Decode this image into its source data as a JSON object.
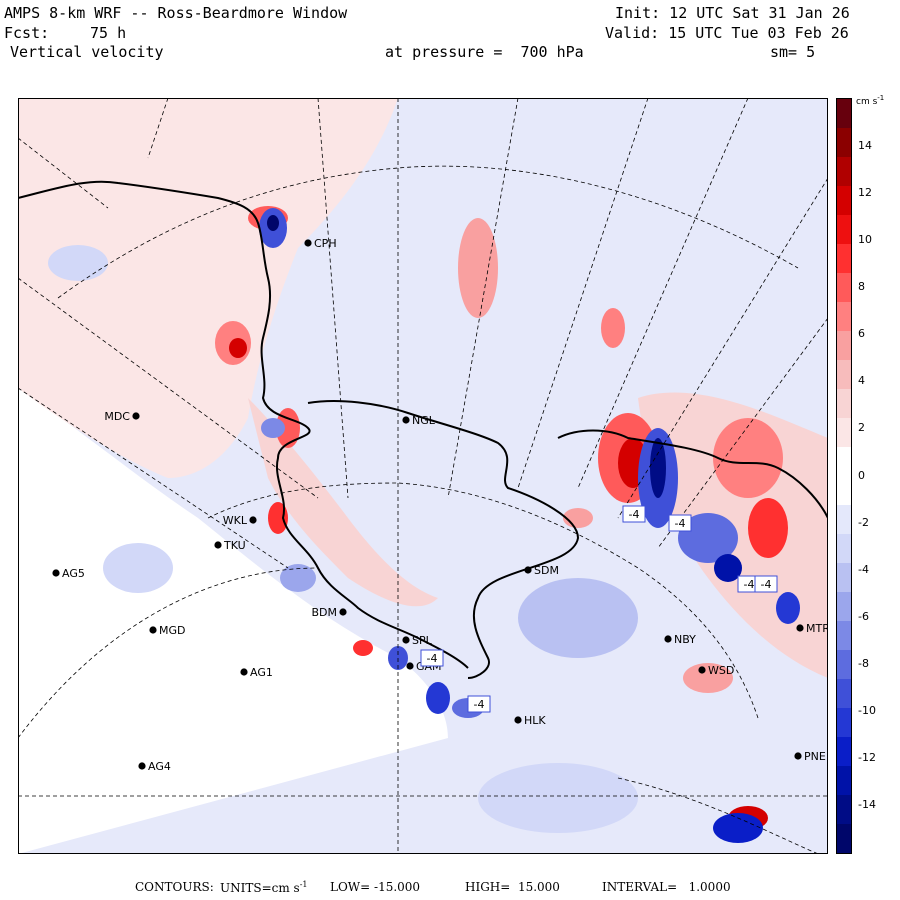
{
  "header": {
    "title": "AMPS 8-km WRF -- Ross-Beardmore Window",
    "init": "Init: 12 UTC Sat 31 Jan 26",
    "forecast_label": "Fcst:",
    "forecast_hours": "75 h",
    "valid": "Valid: 15 UTC Tue 03 Feb 26",
    "field": "Vertical velocity",
    "pressure_level": "at pressure =  700 hPa",
    "smoothing": "sm= 5"
  },
  "colorbar": {
    "units_label": "cm s",
    "units_exp": "-1",
    "tick_labels": [
      "14",
      "12",
      "10",
      "8",
      "6",
      "4",
      "2",
      "0",
      "-2",
      "-4",
      "-6",
      "-8",
      "-10",
      "-12",
      "-14"
    ],
    "colors": [
      "#67000d",
      "#8b0000",
      "#b00000",
      "#d40000",
      "#ee1010",
      "#ff3030",
      "#ff5a5a",
      "#ff8080",
      "#f9a0a0",
      "#f7bcbc",
      "#f8d4d4",
      "#fbe6e6",
      "#ffffff",
      "#ffffff",
      "#e4e8fb",
      "#d2d8f8",
      "#b9c1f2",
      "#9ba6ec",
      "#7c89e6",
      "#5d6cdf",
      "#3f50d8",
      "#2438d4",
      "#0a1ec8",
      "#0012a8",
      "#000c86",
      "#00066a"
    ]
  },
  "stations": [
    {
      "name": "MDC"
    },
    {
      "name": "NGL"
    },
    {
      "name": "TKU"
    },
    {
      "name": "AG5"
    },
    {
      "name": "SDM"
    },
    {
      "name": "MGD"
    },
    {
      "name": "BDM"
    },
    {
      "name": "SPL"
    },
    {
      "name": "GAM"
    },
    {
      "name": "AG1"
    },
    {
      "name": "NBY"
    },
    {
      "name": "MTR"
    },
    {
      "name": "WSD"
    },
    {
      "name": "HLK"
    },
    {
      "name": "AG4"
    },
    {
      "name": "PNE"
    },
    {
      "name": "WKL"
    },
    {
      "name": "CPH"
    }
  ],
  "box_labels": [
    "-4",
    "-4",
    "-4",
    "-4",
    "-4",
    "-4"
  ],
  "footer": {
    "contours_label": "CONTOURS:",
    "units_label": "UNITS=cm s",
    "units_exp": "-1",
    "low": "LOW= -15.000",
    "high": "HIGH=  15.000",
    "interval": "INTERVAL=   1.0000"
  }
}
